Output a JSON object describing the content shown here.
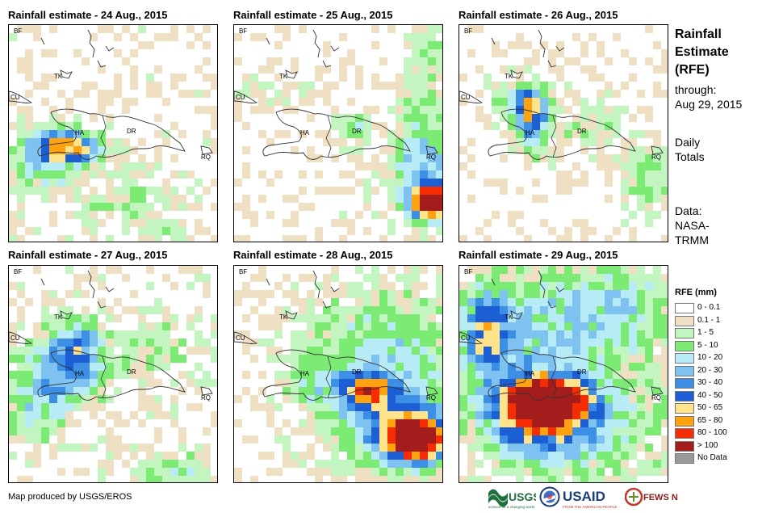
{
  "panels": [
    {
      "title": "Rainfall estimate - 24 Aug., 2015"
    },
    {
      "title": "Rainfall estimate - 25 Aug., 2015"
    },
    {
      "title": "Rainfall estimate - 26 Aug., 2015"
    },
    {
      "title": "Rainfall estimate - 27 Aug., 2015"
    },
    {
      "title": "Rainfall estimate - 28 Aug., 2015"
    },
    {
      "title": "Rainfall estimate - 29 Aug., 2015"
    }
  ],
  "country_labels": {
    "bf": "BF",
    "tk": "TK",
    "cu": "CU",
    "ha": "HA",
    "dr": "DR",
    "rq": "RQ"
  },
  "info": {
    "title_line1": "Rainfall",
    "title_line2": "Estimate",
    "title_line3": "(RFE)",
    "through_label": "through:",
    "through_date": "Aug 29, 2015",
    "daily_line1": "Daily",
    "daily_line2": "Totals",
    "data_line1": "Data:",
    "data_line2": "NASA-",
    "data_line3": "TRMM"
  },
  "legend": {
    "title": "RFE (mm)",
    "items": [
      {
        "label": "0 - 0.1",
        "color": "#ffffff"
      },
      {
        "label": "0.1 - 1",
        "color": "#efdfc3"
      },
      {
        "label": "1 - 5",
        "color": "#c2f5bf"
      },
      {
        "label": "5 - 10",
        "color": "#7ceb74"
      },
      {
        "label": "10 - 20",
        "color": "#b7ecf6"
      },
      {
        "label": "20 - 30",
        "color": "#7ec2f2"
      },
      {
        "label": "30 - 40",
        "color": "#3d8fe6"
      },
      {
        "label": "40 - 50",
        "color": "#1c5fd4"
      },
      {
        "label": "50 - 65",
        "color": "#ffe48b"
      },
      {
        "label": "65 - 80",
        "color": "#fea210"
      },
      {
        "label": "80 - 100",
        "color": "#f52c04"
      },
      {
        "label": "> 100",
        "color": "#a31d1d"
      },
      {
        "label": "No Data",
        "color": "#999999"
      }
    ]
  },
  "credit": "Map produced by USGS/EROS",
  "logos": {
    "usgs": "USGS",
    "usgs_tagline": "science for a changing world",
    "usaid": "USAID",
    "usaid_tagline": "FROM THE AMERICAN PEOPLE",
    "fewsnet": "FEWS NET"
  }
}
